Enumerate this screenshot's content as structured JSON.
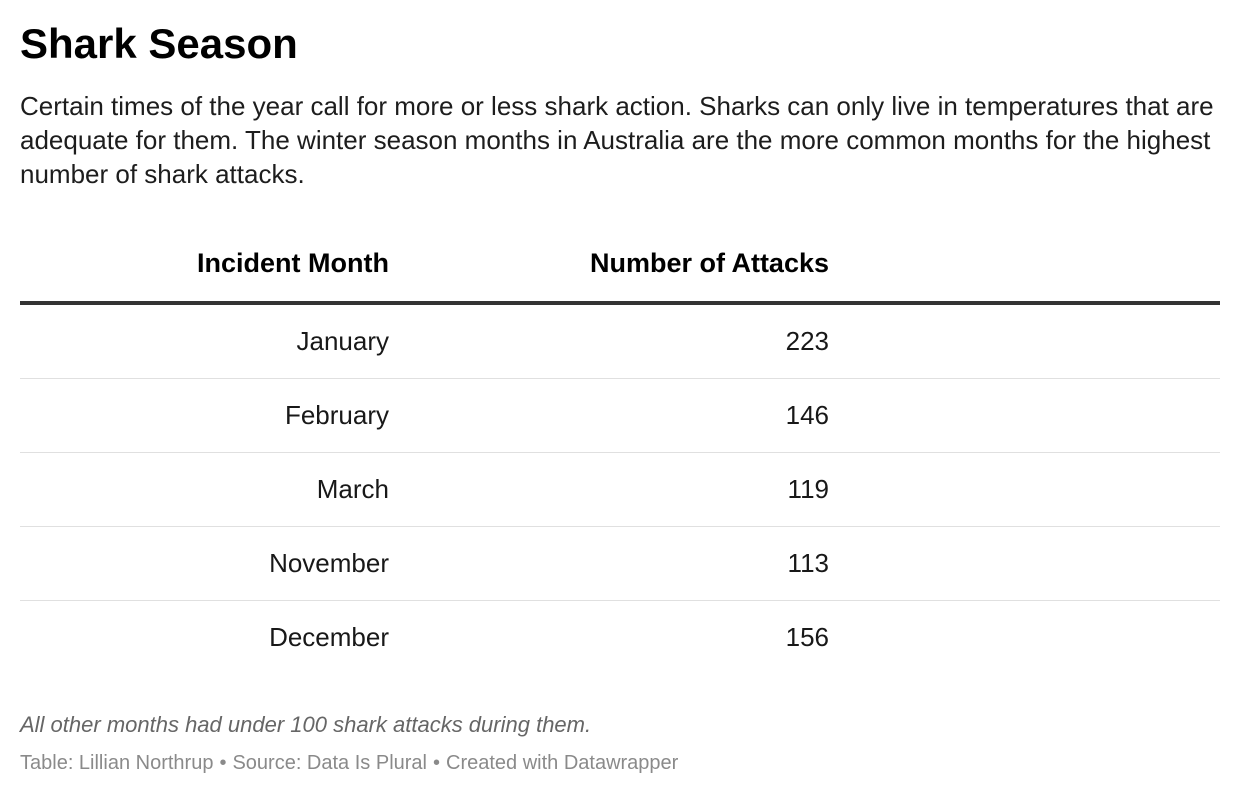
{
  "chart_data": {
    "type": "table",
    "title": "Shark Season",
    "subtitle": "Certain times of the year call for more or less shark action. Sharks can only live in temperatures that are adequate for them. The winter season months in Australia are the more common months for the highest number of shark attacks.",
    "columns": [
      "Incident Month",
      "Number of Attacks"
    ],
    "rows": [
      {
        "month": "January",
        "attacks": "223"
      },
      {
        "month": "February",
        "attacks": "146"
      },
      {
        "month": "March",
        "attacks": "119"
      },
      {
        "month": "November",
        "attacks": "113"
      },
      {
        "month": "December",
        "attacks": "156"
      }
    ],
    "notes": "All other months had under 100 shark attacks during them.",
    "footer": {
      "table_credit": "Table: Lillian Northrup",
      "source": "Source: Data Is Plural",
      "tool": "Created with Datawrapper",
      "separator": "•"
    }
  }
}
